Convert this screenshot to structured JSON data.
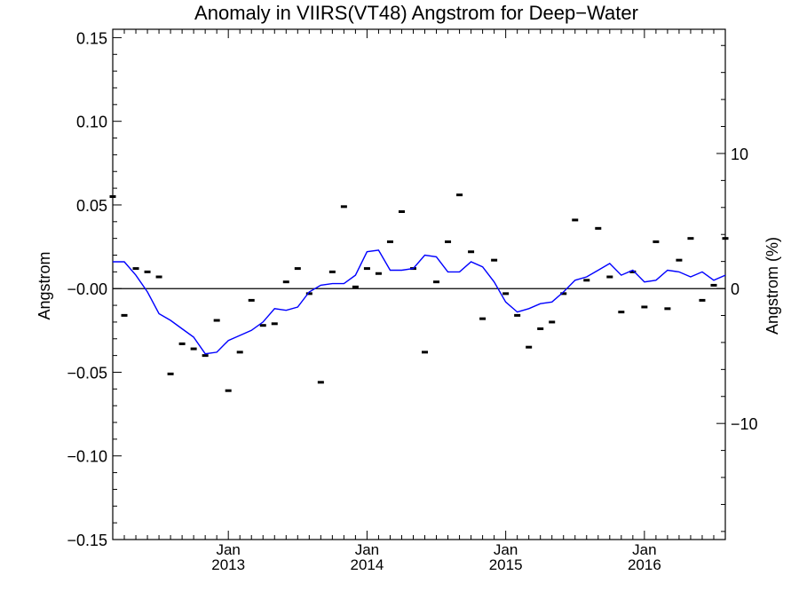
{
  "chart_data": {
    "type": "line",
    "title": "Anomaly in VIIRS(VT48) Angstrom for Deep−Water",
    "ylabel": "Angstrom",
    "ylabel_right": "Angstrom (%)",
    "xlabel": "",
    "xlim": [
      "2012-03",
      "2016-08"
    ],
    "ylim": [
      -0.15,
      0.155
    ],
    "ylim_right": [
      -18.6,
      19.2
    ],
    "grid": false,
    "y_ticks": [
      -0.15,
      -0.1,
      -0.05,
      0.0,
      0.05,
      0.1,
      0.15
    ],
    "y_tick_labels": [
      "−0.15",
      "−0.10",
      "−0.05",
      "−0.00",
      "0.05",
      "0.10",
      "0.15"
    ],
    "y_ticks_right": [
      -10,
      0,
      10
    ],
    "y_tick_labels_right": [
      "−10",
      "0",
      "10"
    ],
    "x_ticks": [
      {
        "date": "2013-01",
        "month": "Jan",
        "year": "2013"
      },
      {
        "date": "2014-01",
        "month": "Jan",
        "year": "2014"
      },
      {
        "date": "2015-01",
        "month": "Jan",
        "year": "2015"
      },
      {
        "date": "2016-01",
        "month": "Jan",
        "year": "2016"
      }
    ],
    "reference_line": 0,
    "monthly_anomaly": {
      "marker": "dash",
      "color": "#000000",
      "x": [
        "2012-03",
        "2012-04",
        "2012-05",
        "2012-06",
        "2012-07",
        "2012-08",
        "2012-09",
        "2012-10",
        "2012-11",
        "2012-12",
        "2013-01",
        "2013-02",
        "2013-03",
        "2013-04",
        "2013-05",
        "2013-06",
        "2013-07",
        "2013-08",
        "2013-09",
        "2013-10",
        "2013-11",
        "2013-12",
        "2014-01",
        "2014-02",
        "2014-03",
        "2014-04",
        "2014-05",
        "2014-06",
        "2014-07",
        "2014-08",
        "2014-09",
        "2014-10",
        "2014-11",
        "2014-12",
        "2015-01",
        "2015-02",
        "2015-03",
        "2015-04",
        "2015-05",
        "2015-06",
        "2015-07",
        "2015-08",
        "2015-09",
        "2015-10",
        "2015-11",
        "2015-12",
        "2016-01",
        "2016-02",
        "2016-03",
        "2016-04",
        "2016-05",
        "2016-06",
        "2016-07",
        "2016-08"
      ],
      "y": [
        0.055,
        -0.016,
        0.012,
        0.01,
        0.007,
        -0.051,
        -0.033,
        -0.036,
        -0.04,
        -0.019,
        -0.061,
        -0.038,
        -0.007,
        -0.022,
        -0.021,
        0.004,
        0.012,
        -0.003,
        -0.056,
        0.01,
        0.049,
        0.001,
        0.012,
        0.009,
        0.028,
        0.046,
        0.012,
        -0.038,
        0.004,
        0.028,
        0.056,
        0.022,
        -0.018,
        0.017,
        -0.003,
        -0.016,
        -0.035,
        -0.024,
        -0.02,
        -0.003,
        0.041,
        0.005,
        0.036,
        0.007,
        -0.014,
        0.01,
        -0.011,
        0.028,
        -0.012,
        0.017,
        0.03,
        -0.007,
        0.002,
        0.03
      ]
    },
    "series": [
      {
        "color": "#0000ff",
        "x": [
          "2012-03",
          "2012-04",
          "2012-05",
          "2012-06",
          "2012-07",
          "2012-08",
          "2012-09",
          "2012-10",
          "2012-11",
          "2012-12",
          "2013-01",
          "2013-02",
          "2013-03",
          "2013-04",
          "2013-05",
          "2013-06",
          "2013-07",
          "2013-08",
          "2013-09",
          "2013-10",
          "2013-11",
          "2013-12",
          "2014-01",
          "2014-02",
          "2014-03",
          "2014-04",
          "2014-05",
          "2014-06",
          "2014-07",
          "2014-08",
          "2014-09",
          "2014-10",
          "2014-11",
          "2014-12",
          "2015-01",
          "2015-02",
          "2015-03",
          "2015-04",
          "2015-05",
          "2015-06",
          "2015-07",
          "2015-08",
          "2015-09",
          "2015-10",
          "2015-11",
          "2015-12",
          "2016-01",
          "2016-02",
          "2016-03",
          "2016-04",
          "2016-05",
          "2016-06",
          "2016-07",
          "2016-08"
        ],
        "values": [
          0.016,
          0.016,
          0.008,
          -0.002,
          -0.015,
          -0.019,
          -0.024,
          -0.029,
          -0.039,
          -0.038,
          -0.031,
          -0.028,
          -0.025,
          -0.02,
          -0.012,
          -0.013,
          -0.011,
          -0.002,
          0.002,
          0.003,
          0.003,
          0.008,
          0.022,
          0.023,
          0.011,
          0.011,
          0.012,
          0.02,
          0.019,
          0.01,
          0.01,
          0.016,
          0.013,
          0.004,
          -0.008,
          -0.014,
          -0.012,
          -0.009,
          -0.008,
          -0.002,
          0.005,
          0.007,
          0.011,
          0.015,
          0.008,
          0.011,
          0.004,
          0.005,
          0.011,
          0.01,
          0.007,
          0.01,
          0.005,
          0.008
        ]
      }
    ]
  }
}
